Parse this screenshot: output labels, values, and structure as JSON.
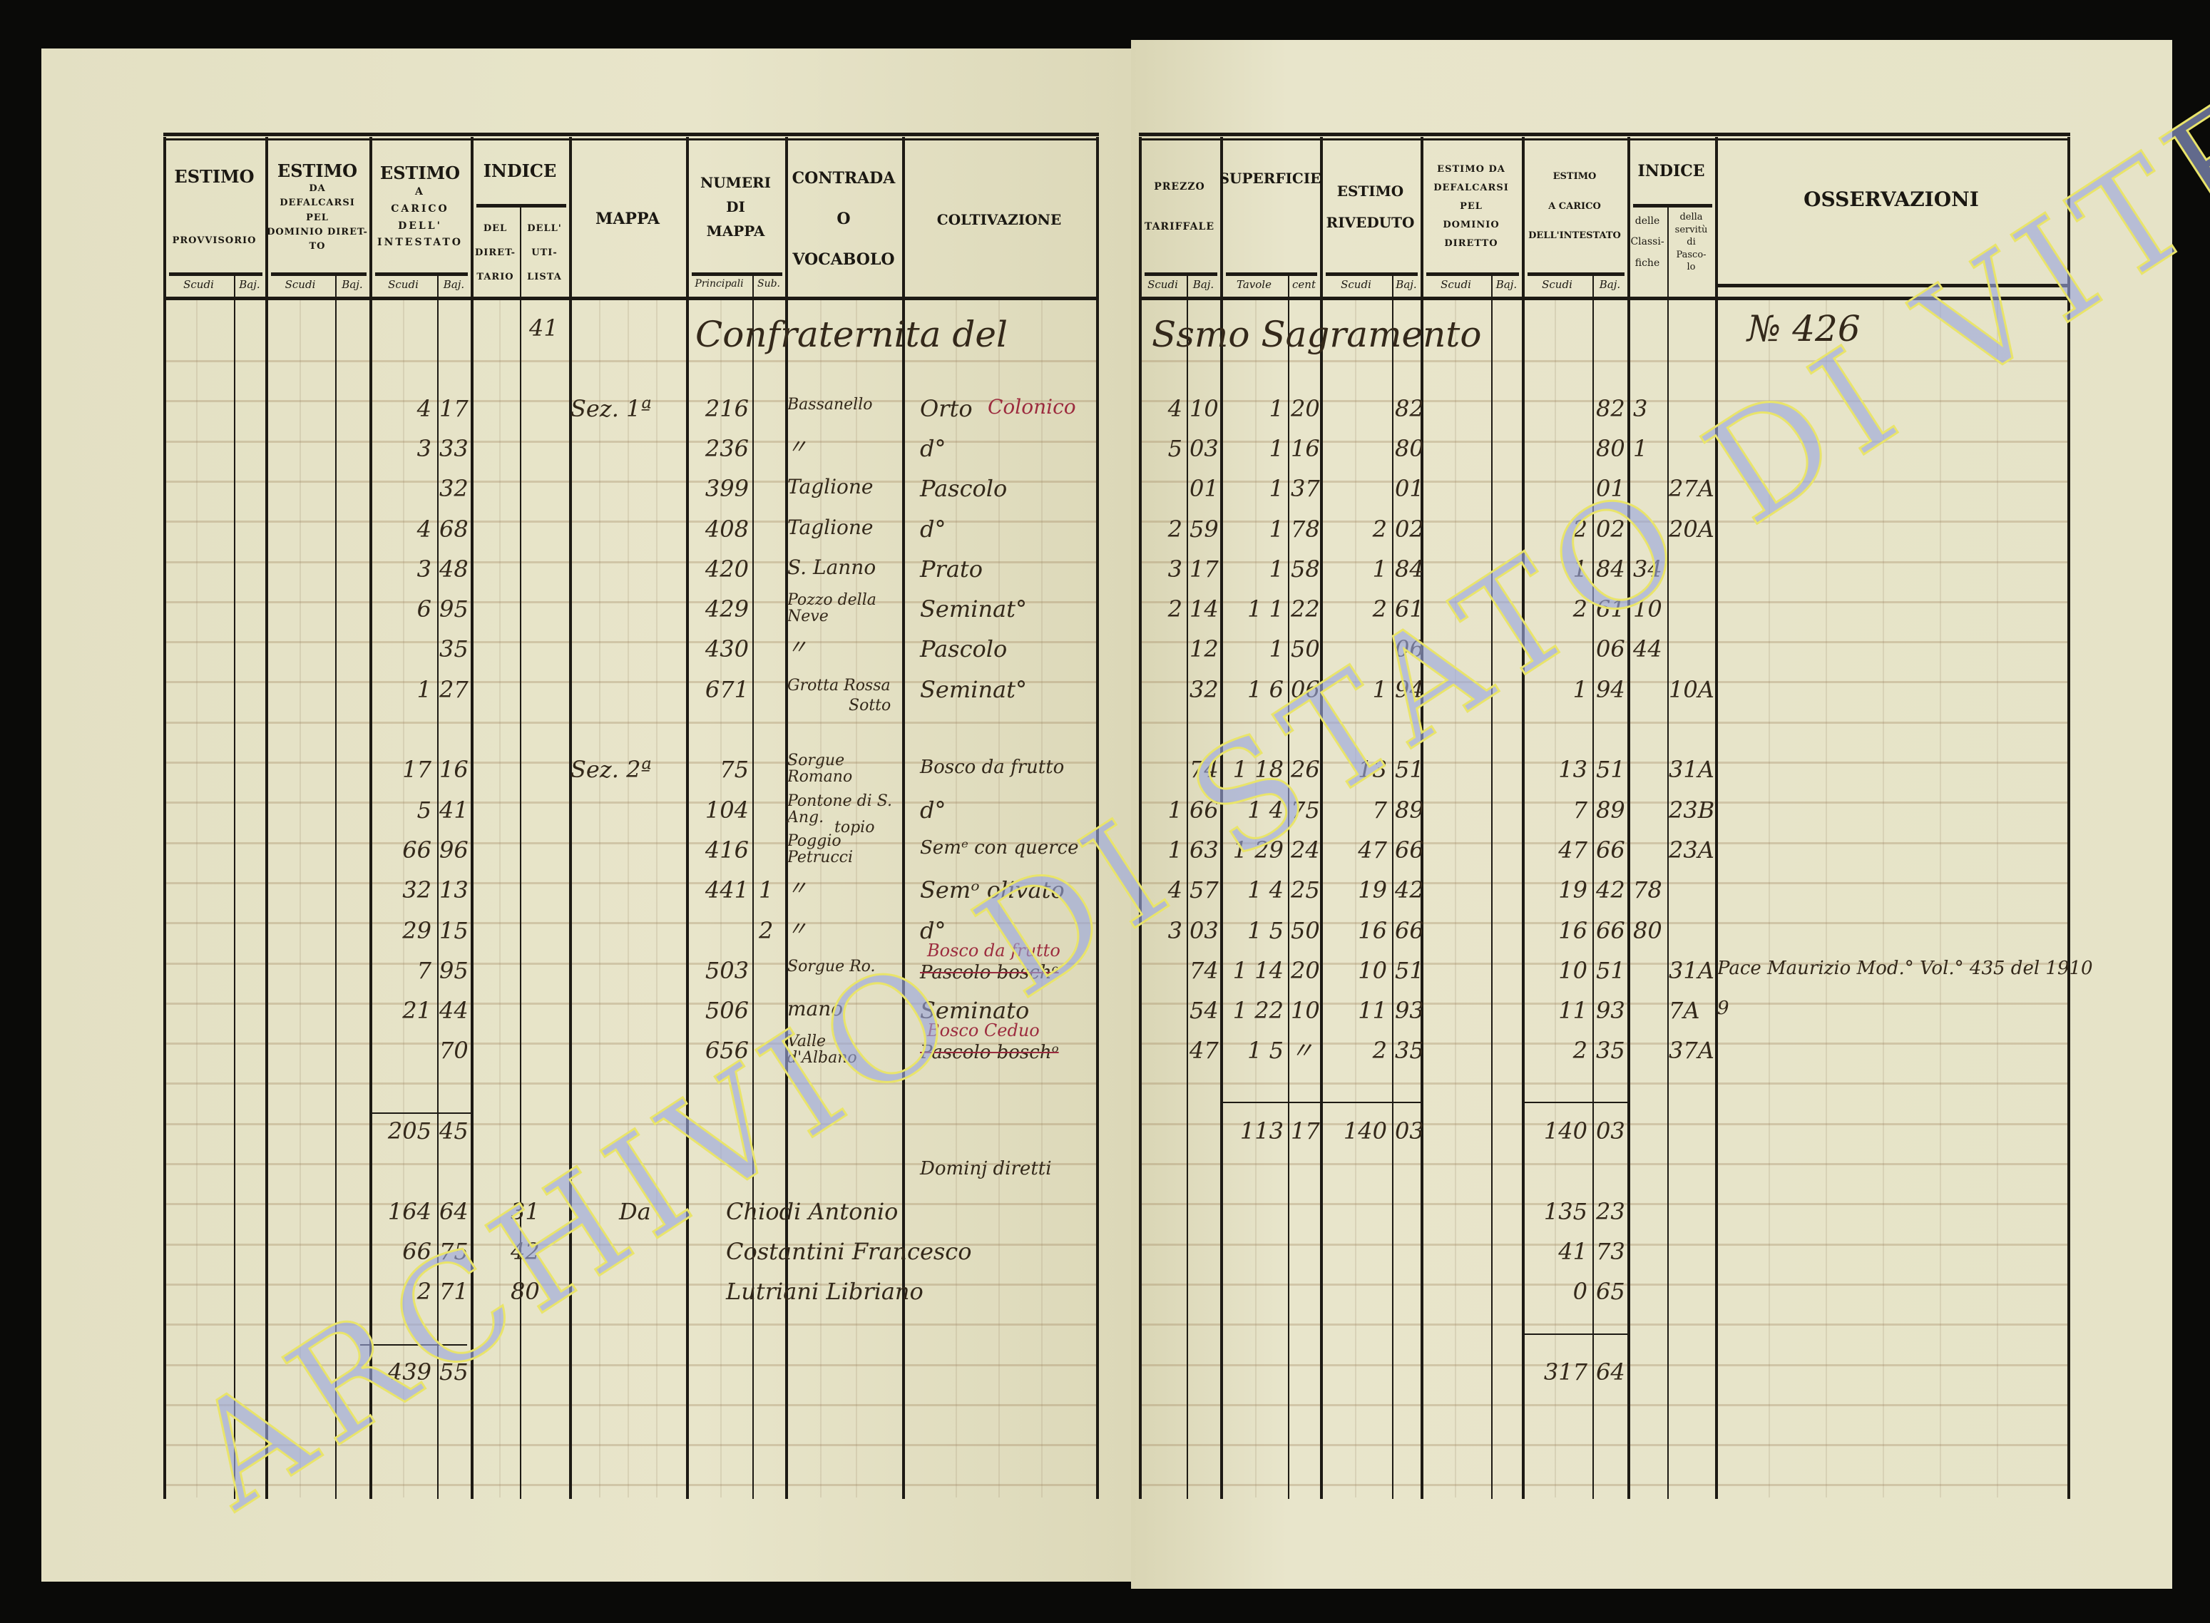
{
  "document": {
    "paper_color": "#e6e3c7",
    "ink_color": "#33281a",
    "red_ink_color": "#9c2b3e",
    "watermark": "ARCHIVIO DI STATO DI VITERBO",
    "watermark_color": "#9aa6dd"
  },
  "header_left": {
    "provvisorio": {
      "title": "ESTIMO",
      "sub": "PROVVISORIO",
      "units": [
        "Scudi",
        "Baj."
      ]
    },
    "defalcarsi": {
      "title": "ESTIMO",
      "sub": "DA\nDEFALCARSI\nPEL\nDOMINIO DIRET-\nTO",
      "units": [
        "Scudi",
        "Baj."
      ]
    },
    "carico": {
      "title": "ESTIMO",
      "sub": "A\nCARICO\nDELL'\nINTESTATO",
      "units": [
        "Scudi",
        "Baj."
      ]
    },
    "indice": {
      "title": "INDICE",
      "subs": [
        "DEL\nDIRET-\nTARIO",
        "DELL'\nUTI-\nLISTA"
      ]
    },
    "mappa": {
      "title": "MAPPA"
    },
    "numeri": {
      "title": "NUMERI\nDI\nMAPPA",
      "units": [
        "Principali",
        "Sub."
      ]
    },
    "contrada": {
      "title": "CONTRADA\nO\nVOCABOLO"
    },
    "coltivazione": {
      "title": "COLTIVAZIONE"
    }
  },
  "header_right": {
    "prezzo": {
      "title": "PREZZO\n\nTARIFFALE",
      "units": [
        "Scudi",
        "Baj."
      ]
    },
    "superficie": {
      "title": "SUPERFICIE",
      "units": [
        "Tavole",
        "cent"
      ]
    },
    "riveduto": {
      "title": "ESTIMO\n\nRIVEDUTO",
      "units": [
        "Scudi",
        "Baj."
      ]
    },
    "defalcarsi": {
      "title": "ESTIMO DA\nDEFALCARSI\nPEL\nDOMINIO\nDIRETTO",
      "units": [
        "Scudi",
        "Baj."
      ]
    },
    "carico": {
      "title": "ESTIMO\n\nA CARICO\n\nDELL'INTESTATO",
      "units": [
        "Scudi",
        "Baj."
      ]
    },
    "indice": {
      "title": "INDICE",
      "subs": [
        "delle\nClassi-\nfiche",
        "della\nservitù\ndi\nPasco-\nlo"
      ]
    },
    "osservazioni": {
      "title": "OSSERVAZIONI"
    }
  },
  "rows": [
    {
      "ind_uti": "41",
      "intestazione": "Confraternita del",
      "intestazione_dx": "Ssmo Sagramento",
      "numero_partita": "№ 426"
    },
    {},
    {
      "car_s": "4",
      "car_b": "17",
      "mappa": "Sez. 1ª",
      "num_p": "216",
      "contrada": "Bassanello",
      "colt": "Orto",
      "colt_red": "Colonico",
      "prez_s": "4",
      "prez_b": "10",
      "sup_t": "1",
      "sup_c": "20",
      "riv_b": "82",
      "rcar_b": "82",
      "ind_cl": "3"
    },
    {
      "car_s": "3",
      "car_b": "33",
      "num_p": "236",
      "contrada": "〃",
      "colt": "d°",
      "prez_s": "5",
      "prez_b": "03",
      "sup_t": "1",
      "sup_c": "16",
      "riv_b": "80",
      "rcar_b": "80",
      "ind_cl": "1"
    },
    {
      "car_b": "32",
      "num_p": "399",
      "contrada": "Taglione",
      "colt": "Pascolo",
      "prez_b": "01",
      "sup_t": "1",
      "sup_c": "37",
      "riv_b": "01",
      "rcar_b": "01",
      "ind_pasc": "27A"
    },
    {
      "car_s": "4",
      "car_b": "68",
      "num_p": "408",
      "contrada": "Taglione",
      "colt": "d°",
      "prez_s": "2",
      "prez_b": "59",
      "sup_t": "1",
      "sup_c": "78",
      "riv_s": "2",
      "riv_b": "02",
      "rcar_s": "2",
      "rcar_b": "02",
      "ind_pasc": "20A"
    },
    {
      "car_s": "3",
      "car_b": "48",
      "num_p": "420",
      "contrada": "S. Lanno",
      "colt": "Prato",
      "prez_s": "3",
      "prez_b": "17",
      "sup_t": "1",
      "sup_c": "58",
      "riv_s": "1",
      "riv_b": "84",
      "rcar_s": "1",
      "rcar_b": "84",
      "ind_cl": "34"
    },
    {
      "car_s": "6",
      "car_b": "95",
      "num_p": "429",
      "contrada": "Pozzo della Neve",
      "colt": "Seminat°",
      "prez_s": "2",
      "prez_b": "14",
      "sup_t": "1  1",
      "sup_c": "22",
      "riv_s": "2",
      "riv_b": "61",
      "rcar_s": "2",
      "rcar_b": "61",
      "ind_cl": "10"
    },
    {
      "car_b": "35",
      "num_p": "430",
      "contrada": "〃",
      "colt": "Pascolo",
      "prez_b": "12",
      "sup_t": "1",
      "sup_c": "50",
      "riv_b": "06",
      "rcar_b": "06",
      "ind_cl": "44"
    },
    {
      "car_s": "1",
      "car_b": "27",
      "num_p": "671",
      "contrada": "Grotta Rossa",
      "contrada_note": "Sotto",
      "colt": "Seminat°",
      "prez_b": "32",
      "sup_t": "1  6",
      "sup_c": "06",
      "riv_s": "1",
      "riv_b": "94",
      "rcar_s": "1",
      "rcar_b": "94",
      "ind_pasc": "10A"
    },
    {},
    {
      "car_s": "17",
      "car_b": "16",
      "mappa": "Sez. 2ª",
      "num_p": "75",
      "contrada": "Sorgue Romano",
      "colt": "Bosco da frutto",
      "prez_b": "74",
      "sup_t": "1  18",
      "sup_c": "26",
      "riv_s": "13",
      "riv_b": "51",
      "rcar_s": "13",
      "rcar_b": "51",
      "ind_pasc": "31A"
    },
    {
      "car_s": "5",
      "car_b": "41",
      "num_p": "104",
      "contrada": "Pontone di S. Ang.",
      "colt": "d°",
      "prez_s": "1",
      "prez_b": "66",
      "sup_t": "1  4",
      "sup_c": "75",
      "riv_s": "7",
      "riv_b": "89",
      "rcar_s": "7",
      "rcar_b": "89",
      "ind_pasc": "23B"
    },
    {
      "car_s": "66",
      "car_b": "96",
      "num_p": "416",
      "contrada": "Poggio Petrucci",
      "contrada_note": "topio",
      "colt": "Semᵉ con querce",
      "prez_s": "1",
      "prez_b": "63",
      "sup_t": "1  29",
      "sup_c": "24",
      "riv_s": "47",
      "riv_b": "66",
      "rcar_s": "47",
      "rcar_b": "66",
      "ind_pasc": "23A"
    },
    {
      "car_s": "32",
      "car_b": "13",
      "num_p": "441",
      "num_sub": "1",
      "contrada": "〃",
      "colt": "Semᵒ olivato",
      "prez_s": "4",
      "prez_b": "57",
      "sup_t": "1  4",
      "sup_c": "25",
      "riv_s": "19",
      "riv_b": "42",
      "rcar_s": "19",
      "rcar_b": "42",
      "ind_cl": "78"
    },
    {
      "car_s": "29",
      "car_b": "15",
      "num_sub": "2",
      "contrada": "〃",
      "colt": "d°",
      "prez_s": "3",
      "prez_b": "03",
      "sup_t": "1  5",
      "sup_c": "50",
      "riv_s": "16",
      "riv_b": "66",
      "rcar_s": "16",
      "rcar_b": "66",
      "ind_cl": "80"
    },
    {
      "car_s": "7",
      "car_b": "95",
      "num_p": "503",
      "contrada": "Sorgue Ro.",
      "colt_red": "Bosco da frutto",
      "colt_struck": "Pascolo boschᵒ",
      "prez_b": "74",
      "sup_t": "1  14",
      "sup_c": "20",
      "riv_s": "10",
      "riv_b": "51",
      "rcar_s": "10",
      "rcar_b": "51",
      "ind_pasc": "31A",
      "oss": "Pace Maurizio Mod.° Vol.° 435 del 1910"
    },
    {
      "car_s": "21",
      "car_b": "44",
      "num_p": "506",
      "contrada": "mano",
      "colt": "Seminato",
      "prez_b": "54",
      "sup_t": "1  22",
      "sup_c": "10",
      "riv_s": "11",
      "riv_b": "93",
      "rcar_s": "11",
      "rcar_b": "93",
      "ind_pasc": "7A",
      "oss": "9"
    },
    {
      "car_b": "70",
      "num_p": "656",
      "contrada": "Valle d'Albano",
      "colt_red": "Bosco Ceduo",
      "colt_struck": "Pascolo boschᵒ",
      "prez_b": "47",
      "sup_t": "1  5",
      "sup_c": "〃",
      "riv_s": "2",
      "riv_b": "35",
      "rcar_s": "2",
      "rcar_b": "35",
      "ind_pasc": "37A"
    },
    {},
    {
      "car_s": "205",
      "car_b": "45",
      "sup_t": "113",
      "sup_c": "17",
      "riv_s": "140",
      "riv_b": "03",
      "rcar_s": "140",
      "rcar_b": "03"
    },
    {
      "colt": "Dominj diretti"
    },
    {
      "car_s": "164",
      "car_b": "64",
      "ind_dir": "31",
      "mappa_da": "Da",
      "name": "Chiodi Antonio",
      "rcar_s": "135",
      "rcar_b": "23"
    },
    {
      "car_s": "66",
      "car_b": "75",
      "ind_dir": "42",
      "name": "Costantini Francesco",
      "rcar_s": "41",
      "rcar_b": "73"
    },
    {
      "car_s": "2",
      "car_b": "71",
      "ind_dir": "80",
      "name": "Lutriani Libriano",
      "rcar_s": "0",
      "rcar_b": "65"
    },
    {},
    {
      "car_s": "439",
      "car_b": "55",
      "rcar_s": "317",
      "rcar_b": "64"
    }
  ]
}
